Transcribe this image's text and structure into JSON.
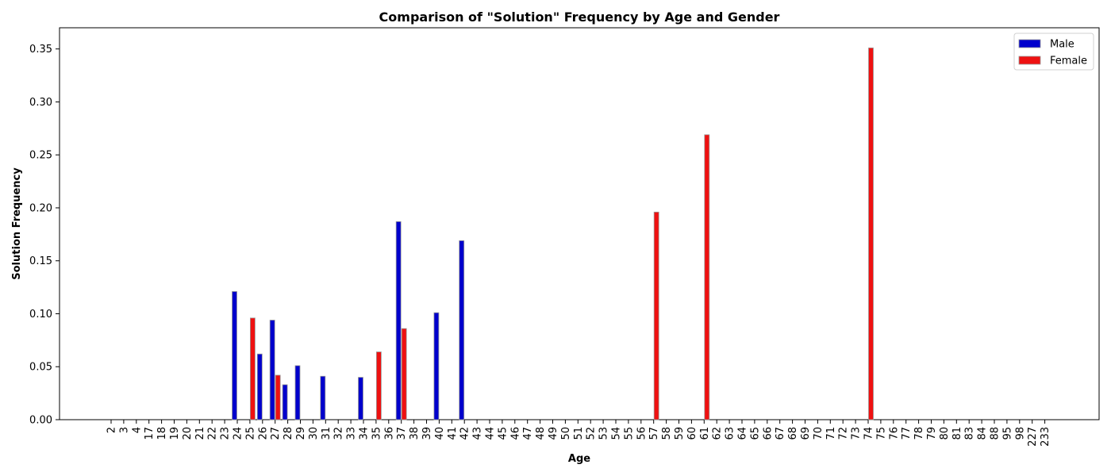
{
  "chart_data": {
    "type": "bar",
    "title": "Comparison of \"Solution\" Frequency by Age and Gender",
    "xlabel": "Age",
    "ylabel": "Solution Frequency",
    "ylim": [
      0,
      0.37
    ],
    "yticks": [
      "0.00",
      "0.05",
      "0.10",
      "0.15",
      "0.20",
      "0.25",
      "0.30",
      "0.35"
    ],
    "ytick_values": [
      0,
      0.05,
      0.1,
      0.15,
      0.2,
      0.25,
      0.3,
      0.35
    ],
    "legend_position": "top-right",
    "grid": false,
    "categories": [
      "2",
      "3",
      "4",
      "17",
      "18",
      "19",
      "20",
      "21",
      "22",
      "23",
      "24",
      "25",
      "26",
      "27",
      "28",
      "29",
      "30",
      "31",
      "32",
      "33",
      "34",
      "35",
      "36",
      "37",
      "38",
      "39",
      "40",
      "41",
      "42",
      "43",
      "44",
      "45",
      "46",
      "47",
      "48",
      "49",
      "50",
      "51",
      "52",
      "53",
      "54",
      "55",
      "56",
      "57",
      "58",
      "59",
      "60",
      "61",
      "62",
      "63",
      "64",
      "65",
      "66",
      "67",
      "68",
      "69",
      "70",
      "71",
      "72",
      "73",
      "74",
      "75",
      "76",
      "77",
      "78",
      "79",
      "80",
      "81",
      "83",
      "84",
      "88",
      "95",
      "98",
      "227",
      "233"
    ],
    "series": [
      {
        "name": "Male",
        "color": "#0000cc",
        "values": [
          0,
          0,
          0,
          0,
          0,
          0,
          0,
          0,
          0,
          0,
          0.121,
          0,
          0.062,
          0.094,
          0.033,
          0.051,
          0,
          0.041,
          0,
          0,
          0.04,
          0,
          0,
          0.187,
          0,
          0,
          0.101,
          0,
          0.169,
          0,
          0,
          0,
          0,
          0,
          0,
          0,
          0,
          0,
          0,
          0,
          0,
          0,
          0,
          0,
          0,
          0,
          0,
          0,
          0,
          0,
          0,
          0,
          0,
          0,
          0,
          0,
          0,
          0,
          0,
          0,
          0,
          0,
          0,
          0,
          0,
          0,
          0,
          0,
          0,
          0,
          0,
          0,
          0,
          0,
          0
        ]
      },
      {
        "name": "Female",
        "color": "#ee1111",
        "values": [
          0,
          0,
          0,
          0,
          0,
          0,
          0,
          0,
          0,
          0,
          0,
          0.096,
          0,
          0.042,
          0,
          0,
          0,
          0,
          0,
          0,
          0,
          0.064,
          0,
          0.086,
          0,
          0,
          0,
          0,
          0,
          0,
          0,
          0,
          0,
          0,
          0,
          0,
          0,
          0,
          0,
          0,
          0,
          0,
          0,
          0.196,
          0,
          0,
          0,
          0.269,
          0,
          0,
          0,
          0,
          0,
          0,
          0,
          0,
          0,
          0,
          0,
          0,
          0.351,
          0,
          0,
          0,
          0,
          0,
          0,
          0,
          0,
          0,
          0,
          0,
          0,
          0,
          0
        ]
      }
    ]
  }
}
